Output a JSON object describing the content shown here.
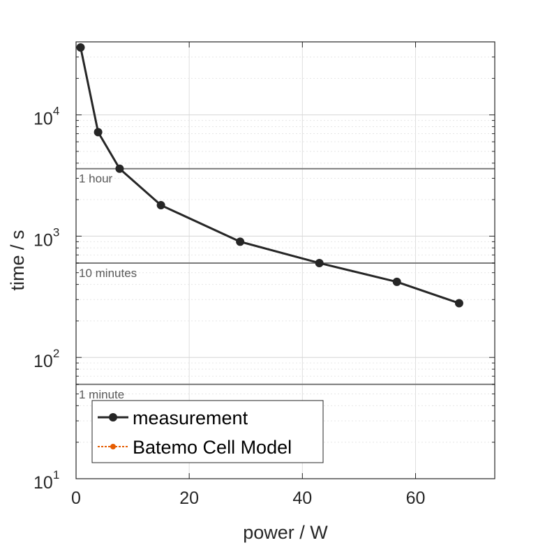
{
  "chart_data": {
    "type": "line",
    "yscale": "log",
    "xlabel": "power / W",
    "ylabel": "time / s",
    "xlim": [
      0,
      74
    ],
    "ylim": [
      10,
      40000
    ],
    "xticks": [
      0,
      20,
      40,
      60
    ],
    "ytick_labels": [
      {
        "value": 10,
        "base": "10",
        "exp": "1"
      },
      {
        "value": 100,
        "base": "10",
        "exp": "2"
      },
      {
        "value": 1000,
        "base": "10",
        "exp": "3"
      },
      {
        "value": 10000,
        "base": "10",
        "exp": "4"
      }
    ],
    "grid": true,
    "series": [
      {
        "name": "measurement",
        "color": "#262626",
        "x": [
          0.8,
          3.9,
          7.7,
          15,
          29,
          43,
          56.7,
          67.7
        ],
        "y": [
          36000,
          7200,
          3600,
          1800,
          900,
          600,
          420,
          280
        ]
      },
      {
        "name": "Batemo Cell Model",
        "color": "#e65c00",
        "x": [],
        "y": []
      }
    ],
    "reference_lines": [
      {
        "y": 3600,
        "label": "1 hour"
      },
      {
        "y": 600,
        "label": "10 minutes"
      },
      {
        "y": 60,
        "label": "1 minute"
      }
    ],
    "legend_position": "bottom-left"
  }
}
